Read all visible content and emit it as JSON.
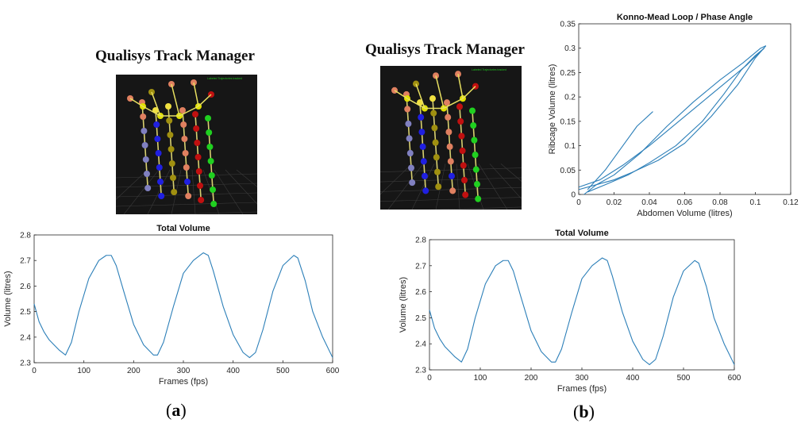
{
  "panel_a": {
    "app_title": "Qualisys Track Manager",
    "viewport_caption": "Labeled Trajectories tracked",
    "label_open": "(",
    "label_letter": "a",
    "label_close": ")"
  },
  "panel_b": {
    "app_title": "Qualisys Track Manager",
    "viewport_caption": "Labeled Trajectories tracked",
    "label_open": "(",
    "label_letter": "b",
    "label_close": ")"
  },
  "colors": {
    "line": "#2c7fb8",
    "viewport_bg": "#161616",
    "grid_floor": "#3a3a3a",
    "marker_colors": [
      "#e08060",
      "#f0e040",
      "#2020e0",
      "#20d020",
      "#c01010",
      "#8080c0",
      "#a09010",
      "#e0e000"
    ]
  },
  "chart_data": [
    {
      "id": "total_volume_a",
      "type": "line",
      "title": "Total Volume",
      "xlabel": "Frames (fps)",
      "ylabel": "Volume (litres)",
      "xlim": [
        0,
        600
      ],
      "ylim": [
        2.3,
        2.8
      ],
      "xticks": [
        "0",
        "100",
        "200",
        "300",
        "400",
        "500",
        "600"
      ],
      "yticks": [
        "2.3",
        "2.4",
        "2.5",
        "2.6",
        "2.7",
        "2.8"
      ],
      "grid": false,
      "series": [
        {
          "x": [
            0,
            10,
            20,
            30,
            40,
            50,
            63,
            75,
            90,
            110,
            130,
            145,
            155,
            165,
            180,
            200,
            220,
            240,
            248,
            260,
            280,
            300,
            320,
            340,
            350,
            360,
            380,
            400,
            420,
            433,
            445,
            460,
            480,
            500,
            522,
            530,
            545,
            560,
            580,
            600
          ],
          "y": [
            2.53,
            2.46,
            2.42,
            2.39,
            2.37,
            2.35,
            2.33,
            2.38,
            2.5,
            2.63,
            2.7,
            2.72,
            2.72,
            2.68,
            2.58,
            2.45,
            2.37,
            2.33,
            2.33,
            2.38,
            2.52,
            2.65,
            2.7,
            2.73,
            2.72,
            2.66,
            2.52,
            2.41,
            2.34,
            2.32,
            2.34,
            2.43,
            2.58,
            2.68,
            2.72,
            2.71,
            2.62,
            2.5,
            2.4,
            2.32
          ]
        }
      ]
    },
    {
      "id": "konno_mead",
      "type": "line",
      "title": "Konno-Mead Loop / Phase Angle",
      "xlabel": "Abdomen Volume (litres)",
      "ylabel": "Ribcage Volume (litres)",
      "xlim": [
        0,
        0.12
      ],
      "ylim": [
        0,
        0.35
      ],
      "xticks": [
        "0",
        "0.02",
        "0.04",
        "0.06",
        "0.08",
        "0.1",
        "0.12"
      ],
      "yticks": [
        "0",
        "0.05",
        "0.1",
        "0.15",
        "0.2",
        "0.25",
        "0.3",
        "0.35"
      ],
      "grid": false,
      "series": [
        {
          "x": [
            0.0,
            0.01,
            0.02,
            0.035,
            0.05,
            0.065,
            0.08,
            0.093,
            0.103,
            0.106
          ],
          "y": [
            0.01,
            0.02,
            0.04,
            0.085,
            0.14,
            0.19,
            0.235,
            0.27,
            0.3,
            0.305
          ]
        },
        {
          "x": [
            0.106,
            0.1,
            0.09,
            0.075,
            0.06,
            0.045,
            0.03,
            0.02,
            0.01,
            0.003
          ],
          "y": [
            0.305,
            0.28,
            0.225,
            0.16,
            0.105,
            0.07,
            0.045,
            0.03,
            0.02,
            0.0
          ]
        },
        {
          "x": [
            0.0,
            0.012,
            0.025,
            0.04,
            0.055,
            0.07,
            0.085,
            0.095,
            0.102,
            0.105
          ],
          "y": [
            0.015,
            0.03,
            0.06,
            0.1,
            0.145,
            0.19,
            0.235,
            0.265,
            0.29,
            0.3
          ]
        },
        {
          "x": [
            0.105,
            0.1,
            0.092,
            0.082,
            0.07,
            0.055,
            0.04,
            0.028,
            0.015,
            0.005
          ],
          "y": [
            0.3,
            0.285,
            0.255,
            0.205,
            0.15,
            0.1,
            0.065,
            0.04,
            0.02,
            0.005
          ]
        },
        {
          "x": [
            0.005,
            0.015,
            0.025,
            0.033,
            0.042
          ],
          "y": [
            0.01,
            0.05,
            0.1,
            0.14,
            0.17
          ]
        }
      ]
    },
    {
      "id": "total_volume_b",
      "type": "line",
      "title": "Total Volume",
      "xlabel": "Frames (fps)",
      "ylabel": "Volume (litres)",
      "xlim": [
        0,
        600
      ],
      "ylim": [
        2.3,
        2.8
      ],
      "xticks": [
        "0",
        "100",
        "200",
        "300",
        "400",
        "500",
        "600"
      ],
      "yticks": [
        "2.3",
        "2.4",
        "2.5",
        "2.6",
        "2.7",
        "2.8"
      ],
      "grid": false,
      "series": [
        {
          "x": [
            0,
            10,
            20,
            30,
            40,
            50,
            63,
            75,
            90,
            110,
            130,
            145,
            155,
            165,
            180,
            200,
            220,
            240,
            248,
            260,
            280,
            300,
            320,
            340,
            350,
            360,
            380,
            400,
            420,
            433,
            445,
            460,
            480,
            500,
            522,
            530,
            545,
            560,
            580,
            600
          ],
          "y": [
            2.53,
            2.46,
            2.42,
            2.39,
            2.37,
            2.35,
            2.33,
            2.38,
            2.5,
            2.63,
            2.7,
            2.72,
            2.72,
            2.68,
            2.58,
            2.45,
            2.37,
            2.33,
            2.33,
            2.38,
            2.52,
            2.65,
            2.7,
            2.73,
            2.72,
            2.66,
            2.52,
            2.41,
            2.34,
            2.32,
            2.34,
            2.43,
            2.58,
            2.68,
            2.72,
            2.71,
            2.62,
            2.5,
            2.4,
            2.32
          ]
        }
      ]
    }
  ]
}
